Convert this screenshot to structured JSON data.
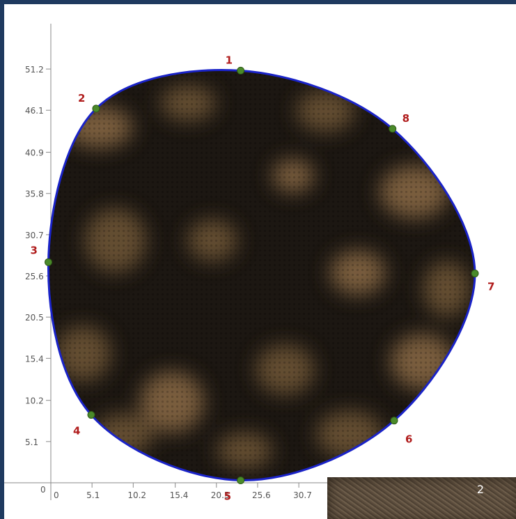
{
  "axes": {
    "x_ticks": [
      "0",
      "5.1",
      "10.2",
      "15.4",
      "20.5",
      "25.6",
      "30.7"
    ],
    "y_ticks": [
      "0",
      "5.1",
      "10.2",
      "15.4",
      "20.5",
      "25.6",
      "30.7",
      "35.8",
      "40.9",
      "46.1",
      "51.2"
    ]
  },
  "points": [
    {
      "label": "1",
      "x": 23.5,
      "y": 51.0
    },
    {
      "label": "2",
      "x": 5.6,
      "y": 46.3
    },
    {
      "label": "3",
      "x": -0.3,
      "y": 27.3
    },
    {
      "label": "4",
      "x": 5.0,
      "y": 8.4
    },
    {
      "label": "5",
      "x": 23.5,
      "y": 0.3
    },
    {
      "label": "6",
      "x": 42.5,
      "y": 7.7
    },
    {
      "label": "7",
      "x": 52.5,
      "y": 25.9
    },
    {
      "label": "8",
      "x": 42.3,
      "y": 43.8
    }
  ],
  "colors": {
    "outline": "#1a23c8",
    "point_fill": "#4a8a2a",
    "point_label": "#b01c1c",
    "axis": "#8a8a8a",
    "blob_dark": "#1c1712",
    "blob_light": "#8a6a44"
  },
  "inset": {
    "label": "2"
  }
}
